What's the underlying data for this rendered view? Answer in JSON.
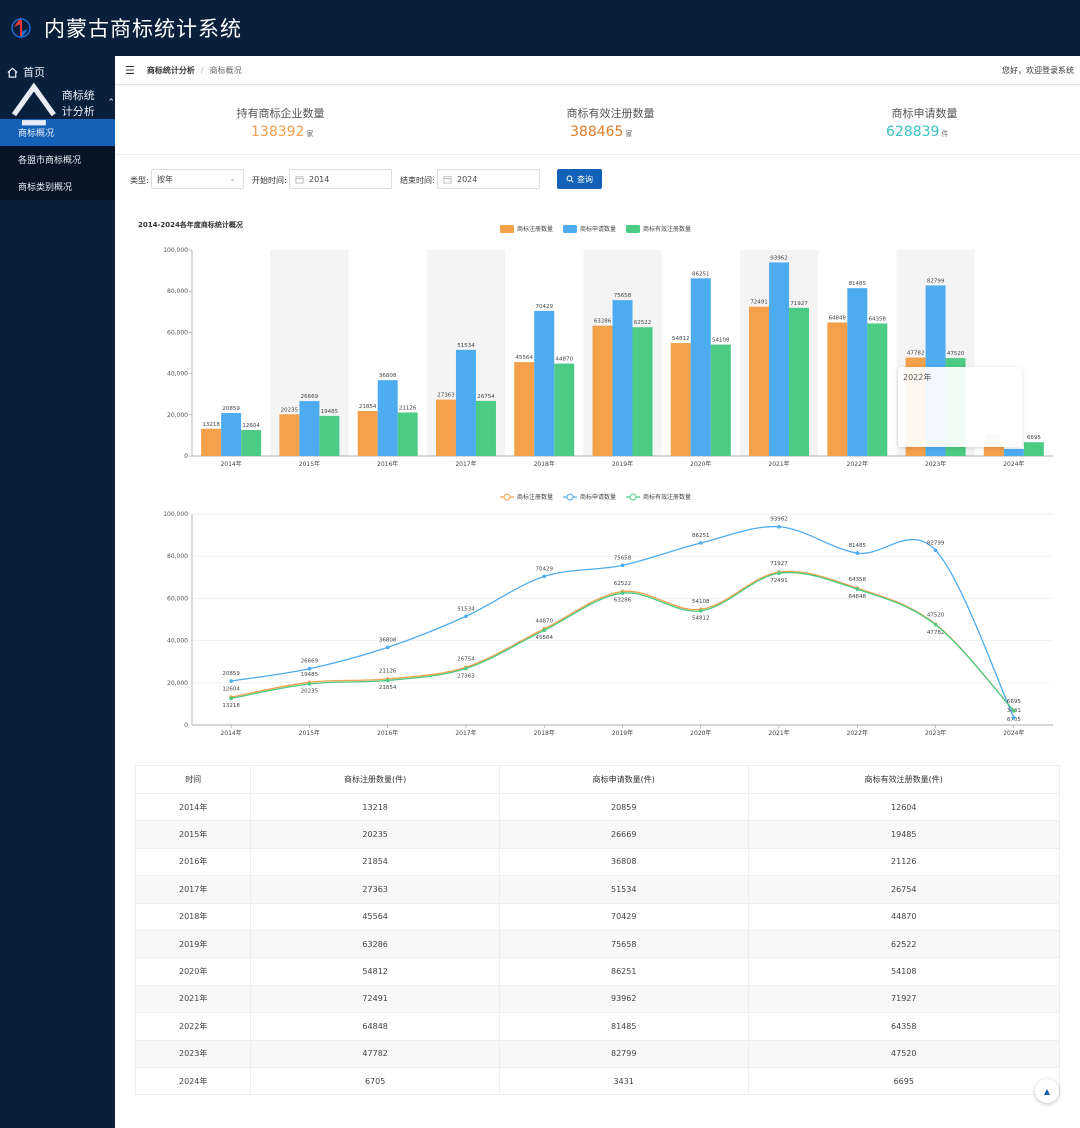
{
  "app": {
    "title": "内蒙古商标统计系统"
  },
  "sidebar": {
    "home": "首页",
    "group": "商标统计分析",
    "items": [
      "商标概况",
      "各盟市商标概况",
      "商标类别概况"
    ]
  },
  "breadcrumb": {
    "section": "商标统计分析",
    "page": "商标概况",
    "welcome": "您好，欢迎登录系统"
  },
  "stats": [
    {
      "label": "持有商标企业数量",
      "value": "138392",
      "unit": "家",
      "color": "#f59c4c"
    },
    {
      "label": "商标有效注册数量",
      "value": "388465",
      "unit": "家",
      "color": "#e07d28"
    },
    {
      "label": "商标申请数量",
      "value": "628839",
      "unit": "件",
      "color": "#35c1c1"
    }
  ],
  "filters": {
    "type_label": "类型:",
    "type_value": "按年",
    "start_label": "开始时间:",
    "start_value": "2014",
    "end_label": "结束时间:",
    "end_value": "2024",
    "query_label": "查询"
  },
  "tooltip": {
    "title": "2022年"
  },
  "colors": {
    "reg": "#f5a04a",
    "app": "#4dacf0",
    "valid": "#4ccb84"
  },
  "chart_data": [
    {
      "type": "bar",
      "title": "2014-2024各年度商标统计概况",
      "categories": [
        "2014年",
        "2015年",
        "2016年",
        "2017年",
        "2018年",
        "2019年",
        "2020年",
        "2021年",
        "2022年",
        "2023年",
        "2024年"
      ],
      "series": [
        {
          "name": "商标注册数量",
          "values": [
            13218,
            20235,
            21854,
            27363,
            45564,
            63286,
            54812,
            72491,
            64848,
            47782,
            6705
          ]
        },
        {
          "name": "商标申请数量",
          "values": [
            20859,
            26669,
            36808,
            51534,
            70429,
            75658,
            86251,
            93962,
            81485,
            82799,
            3431
          ]
        },
        {
          "name": "商标有效注册数量",
          "values": [
            12604,
            19485,
            21126,
            26754,
            44870,
            62522,
            54108,
            71927,
            64358,
            47520,
            6695
          ]
        }
      ],
      "yticks": [
        "0",
        "20,000",
        "40,000",
        "60,000",
        "80,000",
        "100,000"
      ],
      "ylim": [
        0,
        100000
      ],
      "legend": "top-center"
    },
    {
      "type": "line",
      "categories": [
        "2014年",
        "2015年",
        "2016年",
        "2017年",
        "2018年",
        "2019年",
        "2020年",
        "2021年",
        "2022年",
        "2023年",
        "2024年"
      ],
      "series": [
        {
          "name": "商标注册数量",
          "values": [
            13218,
            20235,
            21854,
            27363,
            45564,
            63286,
            54812,
            72491,
            64848,
            47782,
            6705
          ]
        },
        {
          "name": "商标申请数量",
          "values": [
            20859,
            26669,
            36808,
            51534,
            70429,
            75658,
            86251,
            93962,
            81485,
            82799,
            3431
          ]
        },
        {
          "name": "商标有效注册数量",
          "values": [
            12604,
            19485,
            21126,
            26754,
            44870,
            62522,
            54108,
            71927,
            64358,
            47520,
            6695
          ]
        }
      ],
      "yticks": [
        "0",
        "20,000",
        "40,000",
        "60,000",
        "80,000",
        "100,000"
      ],
      "ylim": [
        0,
        100000
      ],
      "legend": "top-center"
    }
  ],
  "table": {
    "headers": [
      "时间",
      "商标注册数量(件)",
      "商标申请数量(件)",
      "商标有效注册数量(件)"
    ],
    "rows": [
      [
        "2014年",
        "13218",
        "20859",
        "12604"
      ],
      [
        "2015年",
        "20235",
        "26669",
        "19485"
      ],
      [
        "2016年",
        "21854",
        "36808",
        "21126"
      ],
      [
        "2017年",
        "27363",
        "51534",
        "26754"
      ],
      [
        "2018年",
        "45564",
        "70429",
        "44870"
      ],
      [
        "2019年",
        "63286",
        "75658",
        "62522"
      ],
      [
        "2020年",
        "54812",
        "86251",
        "54108"
      ],
      [
        "2021年",
        "72491",
        "93962",
        "71927"
      ],
      [
        "2022年",
        "64848",
        "81485",
        "64358"
      ],
      [
        "2023年",
        "47782",
        "82799",
        "47520"
      ],
      [
        "2024年",
        "6705",
        "3431",
        "6695"
      ]
    ]
  }
}
